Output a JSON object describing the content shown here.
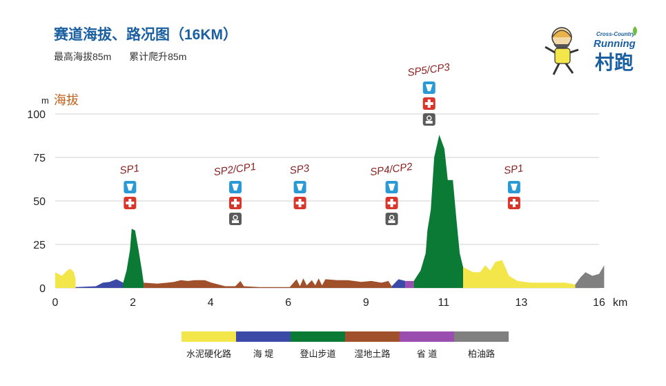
{
  "header": {
    "title": "赛道海拔、路况图（16KM）",
    "max_altitude": "最高海拔85m",
    "total_climb": "累计爬升85m"
  },
  "logo": {
    "line1": "Cross-Country",
    "line2": "Running",
    "cn": "村跑"
  },
  "chart_data": {
    "type": "area",
    "ylabel": "海拔",
    "yunit": "m",
    "xunit": "km",
    "ylim": [
      0,
      100
    ],
    "yticks": [
      0,
      25,
      50,
      75,
      100
    ],
    "xlim": [
      0,
      16
    ],
    "xtick_labels": [
      "0",
      "2",
      "4",
      "6",
      "9",
      "11",
      "13",
      "16"
    ],
    "grid": true,
    "legend_position": "bottom",
    "segments": [
      {
        "name": "水泥硬化路",
        "color": "#f2e64a",
        "points": [
          [
            0,
            0
          ],
          [
            0,
            9
          ],
          [
            0.2,
            7
          ],
          [
            0.35,
            10
          ],
          [
            0.45,
            11
          ],
          [
            0.55,
            9
          ],
          [
            0.6,
            5
          ],
          [
            0.6,
            0
          ]
        ]
      },
      {
        "name": "海 堤",
        "color": "#3b4aa6",
        "points": [
          [
            0.6,
            0
          ],
          [
            0.6,
            0.5
          ],
          [
            1.2,
            1
          ],
          [
            1.4,
            3
          ],
          [
            1.6,
            3.5
          ],
          [
            1.8,
            5
          ],
          [
            2.0,
            3
          ],
          [
            2.0,
            0
          ]
        ]
      },
      {
        "name": "登山步道",
        "color": "#0b7a34",
        "points": [
          [
            2.0,
            0
          ],
          [
            2.0,
            3
          ],
          [
            2.1,
            10
          ],
          [
            2.2,
            22
          ],
          [
            2.25,
            34
          ],
          [
            2.35,
            33
          ],
          [
            2.45,
            22
          ],
          [
            2.55,
            10
          ],
          [
            2.6,
            3
          ],
          [
            2.6,
            0
          ]
        ]
      },
      {
        "name": "湿地土路",
        "color": "#a0502a",
        "points": [
          [
            2.6,
            0
          ],
          [
            2.6,
            3
          ],
          [
            3.0,
            2.5
          ],
          [
            3.3,
            3
          ],
          [
            3.5,
            3.5
          ],
          [
            3.7,
            4.5
          ],
          [
            3.9,
            4
          ],
          [
            4.1,
            4.5
          ],
          [
            4.4,
            4.5
          ],
          [
            4.6,
            3
          ],
          [
            5.0,
            1
          ],
          [
            5.3,
            1
          ],
          [
            5.45,
            4
          ],
          [
            5.55,
            1
          ],
          [
            6.0,
            0.5
          ],
          [
            6.9,
            0.5
          ],
          [
            7.1,
            5
          ],
          [
            7.2,
            1
          ],
          [
            7.3,
            5.5
          ],
          [
            7.4,
            1.5
          ],
          [
            7.55,
            4.5
          ],
          [
            7.65,
            1.5
          ],
          [
            7.75,
            5.5
          ],
          [
            7.85,
            1.5
          ],
          [
            7.95,
            5
          ],
          [
            8.3,
            4.5
          ],
          [
            8.6,
            4.5
          ],
          [
            9.0,
            3.5
          ],
          [
            9.3,
            4
          ],
          [
            9.6,
            3
          ],
          [
            9.8,
            4
          ],
          [
            9.9,
            1
          ],
          [
            9.9,
            0
          ]
        ]
      },
      {
        "name": "海 堤",
        "color": "#3b4aa6",
        "points": [
          [
            9.9,
            0
          ],
          [
            9.9,
            1
          ],
          [
            10.1,
            5
          ],
          [
            10.3,
            4
          ],
          [
            10.3,
            0
          ]
        ]
      },
      {
        "name": "省 道",
        "color": "#9a4fb0",
        "points": [
          [
            10.3,
            0
          ],
          [
            10.3,
            4
          ],
          [
            10.55,
            4
          ],
          [
            10.55,
            0
          ]
        ]
      },
      {
        "name": "登山步道",
        "color": "#0b7a34",
        "points": [
          [
            10.55,
            0
          ],
          [
            10.55,
            4
          ],
          [
            10.75,
            10
          ],
          [
            10.9,
            20
          ],
          [
            10.95,
            33
          ],
          [
            11.05,
            45
          ],
          [
            11.15,
            75
          ],
          [
            11.3,
            88
          ],
          [
            11.45,
            80
          ],
          [
            11.55,
            62
          ],
          [
            11.7,
            62
          ],
          [
            11.8,
            40
          ],
          [
            11.9,
            20
          ],
          [
            12.0,
            12
          ],
          [
            12.0,
            0
          ]
        ]
      },
      {
        "name": "水泥硬化路",
        "color": "#f2e64a",
        "points": [
          [
            12.0,
            0
          ],
          [
            12.0,
            12
          ],
          [
            12.3,
            9
          ],
          [
            12.5,
            9
          ],
          [
            12.65,
            13
          ],
          [
            12.8,
            10
          ],
          [
            12.95,
            15
          ],
          [
            13.15,
            16
          ],
          [
            13.35,
            7
          ],
          [
            13.6,
            4
          ],
          [
            14.0,
            3
          ],
          [
            14.5,
            3
          ],
          [
            15.0,
            3
          ],
          [
            15.3,
            2
          ],
          [
            15.3,
            0
          ]
        ]
      },
      {
        "name": "柏油路",
        "color": "#808080",
        "points": [
          [
            15.3,
            0
          ],
          [
            15.3,
            2
          ],
          [
            15.45,
            6
          ],
          [
            15.6,
            9
          ],
          [
            15.8,
            7
          ],
          [
            16.0,
            8
          ],
          [
            16.15,
            13
          ],
          [
            16.15,
            0
          ]
        ]
      }
    ],
    "legend": [
      {
        "name": "水泥硬化路",
        "color": "#f2e64a"
      },
      {
        "name": "海 堤",
        "color": "#3b4aa6"
      },
      {
        "name": "登山步道",
        "color": "#0b7a34"
      },
      {
        "name": "湿地土路",
        "color": "#a0502a"
      },
      {
        "name": "省 道",
        "color": "#9a4fb0"
      },
      {
        "name": "柏油路",
        "color": "#808080"
      }
    ],
    "stations": [
      {
        "label": "SP1",
        "x": 2.2,
        "icons": [
          "drink",
          "medical"
        ]
      },
      {
        "label": "SP2/CP1",
        "x": 5.3,
        "icons": [
          "drink",
          "medical",
          "checkpoint"
        ]
      },
      {
        "label": "SP3",
        "x": 7.2,
        "icons": [
          "drink",
          "medical"
        ]
      },
      {
        "label": "SP4/CP2",
        "x": 9.9,
        "icons": [
          "drink",
          "medical",
          "checkpoint"
        ]
      },
      {
        "label": "SP5/CP3",
        "x": 11.0,
        "icons": [
          "drink",
          "medical",
          "checkpoint"
        ],
        "elevated": true
      },
      {
        "label": "SP1",
        "x": 13.5,
        "icons": [
          "drink",
          "medical"
        ]
      }
    ]
  }
}
